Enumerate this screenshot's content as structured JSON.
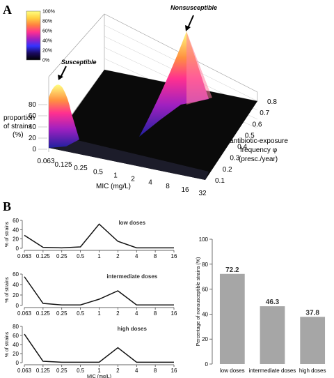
{
  "panel_a": {
    "label": "A",
    "colorbar": {
      "ticks": [
        "100%",
        "80%",
        "60%",
        "40%",
        "20%",
        "0%"
      ],
      "stops": [
        "#000000",
        "#1a0a60",
        "#3333ff",
        "#a020c0",
        "#ff3090",
        "#ff8040",
        "#ffd040",
        "#ffff80"
      ]
    },
    "annotations": {
      "susceptible": "Susceptible",
      "nonsusceptible": "Nonsusceptible"
    },
    "zlabel": [
      "proportion",
      "of strains",
      "(%)"
    ],
    "zticks": [
      "80",
      "60",
      "40",
      "20",
      "0"
    ],
    "xlabel": "MIC (mg/L)",
    "xticks": [
      "0.063",
      "0.125",
      "0.25",
      "0.5",
      "1",
      "2",
      "4",
      "8",
      "16",
      "32"
    ],
    "ylabel": [
      "antibiotic-exposure",
      "frequency φ",
      "(presc./year)"
    ],
    "yticks": [
      "0.1",
      "0.2",
      "0.3",
      "0.4",
      "0.5",
      "0.6",
      "0.7",
      "0.8"
    ]
  },
  "panel_b": {
    "label": "B"
  },
  "chart_data": [
    {
      "type": "line",
      "title": "low doses",
      "ylabel": "% of strains",
      "categories": [
        "0.063",
        "0.125",
        "0.25",
        "0.5",
        "1",
        "2",
        "4",
        "8",
        "16"
      ],
      "values": [
        28,
        2,
        1,
        3,
        52,
        15,
        1,
        1,
        1
      ],
      "ylim": [
        0,
        60
      ],
      "yticks": [
        "0",
        "20",
        "40",
        "60"
      ]
    },
    {
      "type": "line",
      "title": "intermediate doses",
      "ylabel": "% of strains",
      "categories": [
        "0.063",
        "0.125",
        "0.25",
        "0.5",
        "1",
        "2",
        "4",
        "8",
        "16"
      ],
      "values": [
        55,
        4,
        1,
        1,
        12,
        28,
        1,
        1,
        1
      ],
      "ylim": [
        0,
        60
      ],
      "yticks": [
        "0",
        "20",
        "40",
        "60"
      ]
    },
    {
      "type": "line",
      "title": "high doses",
      "ylabel": "% of strains",
      "xlabel": "MIC (mg/L)",
      "categories": [
        "0.063",
        "0.125",
        "0.25",
        "0.5",
        "1",
        "2",
        "4",
        "8",
        "16"
      ],
      "values": [
        63,
        3,
        1,
        1,
        1,
        33,
        1,
        1,
        1
      ],
      "ylim": [
        0,
        80
      ],
      "yticks": [
        "0",
        "20",
        "40",
        "60",
        "80"
      ]
    },
    {
      "type": "bar",
      "ylabel": "Percentage of nonsusceptible strains (%)",
      "categories": [
        "low doses",
        "intermediate doses",
        "high doses"
      ],
      "values": [
        72.2,
        46.3,
        37.8
      ],
      "value_labels": [
        "72.2",
        "46.3",
        "37.8"
      ],
      "ylim": [
        0,
        100
      ],
      "yticks": [
        "0",
        "20",
        "40",
        "60",
        "80",
        "100"
      ],
      "bar_color": "#a6a6a6"
    }
  ]
}
